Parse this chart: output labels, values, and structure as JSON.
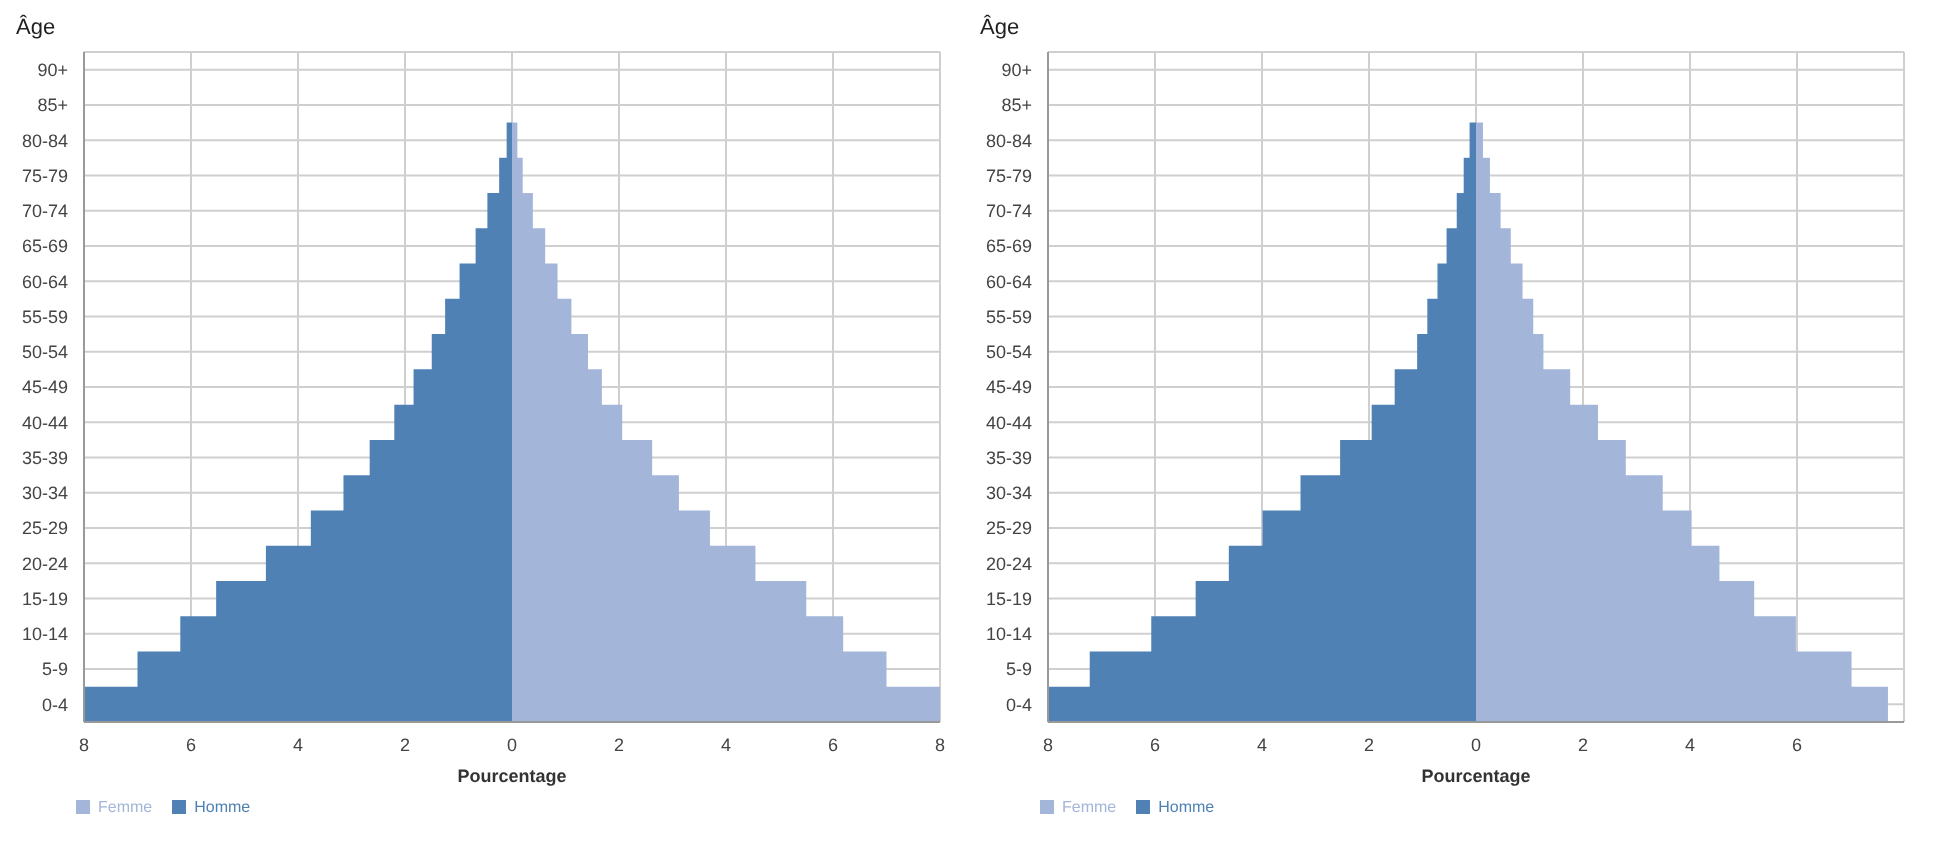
{
  "chart_data": [
    {
      "type": "bar",
      "orientation": "horizontal",
      "stacked": true,
      "ylabel": "Âge",
      "xlabel": "Pourcentage",
      "categories": [
        "90+",
        "85+",
        "80-84",
        "75-79",
        "70-74",
        "65-69",
        "60-64",
        "55-59",
        "50-54",
        "45-49",
        "40-44",
        "35-39",
        "30-34",
        "25-29",
        "20-24",
        "15-19",
        "10-14",
        "5-9",
        "0-4"
      ],
      "series": [
        {
          "name": "Femme",
          "color": "#a3b5d8",
          "values": [
            0,
            0,
            0.1,
            0.2,
            0.39,
            0.62,
            0.85,
            1.11,
            1.42,
            1.68,
            2.06,
            2.62,
            3.12,
            3.7,
            4.55,
            5.5,
            6.19,
            7.0,
            8.0
          ]
        },
        {
          "name": "Homme",
          "color": "#4f81b5",
          "values": [
            0,
            0,
            -0.1,
            -0.24,
            -0.46,
            -0.68,
            -0.98,
            -1.25,
            -1.5,
            -1.84,
            -2.2,
            -2.66,
            -3.15,
            -3.76,
            -4.6,
            -5.53,
            -6.2,
            -7.0,
            -8.0
          ]
        }
      ],
      "xlim": [
        -8,
        8
      ],
      "xticks": [
        {
          "value": -8,
          "label": "8"
        },
        {
          "value": -6,
          "label": "6"
        },
        {
          "value": -4,
          "label": "4"
        },
        {
          "value": -2,
          "label": "2"
        },
        0,
        2,
        4,
        6,
        8
      ],
      "grid": true,
      "legend": "bottom left"
    },
    {
      "type": "bar",
      "orientation": "horizontal",
      "stacked": true,
      "ylabel": "Âge",
      "xlabel": "Pourcentage",
      "categories": [
        "90+",
        "85+",
        "80-84",
        "75-79",
        "70-74",
        "65-69",
        "60-64",
        "55-59",
        "50-54",
        "45-49",
        "40-44",
        "35-39",
        "30-34",
        "25-29",
        "20-24",
        "15-19",
        "10-14",
        "5-9",
        "0-4"
      ],
      "series": [
        {
          "name": "Femme",
          "color": "#a3b5d8",
          "values": [
            0,
            0,
            0.13,
            0.26,
            0.46,
            0.65,
            0.87,
            1.07,
            1.26,
            1.76,
            2.28,
            2.8,
            3.49,
            4.03,
            4.55,
            5.2,
            5.98,
            7.02,
            7.7
          ]
        },
        {
          "name": "Homme",
          "color": "#4f81b5",
          "values": [
            0,
            0,
            -0.12,
            -0.23,
            -0.36,
            -0.55,
            -0.72,
            -0.91,
            -1.1,
            -1.52,
            -1.95,
            -2.54,
            -3.28,
            -3.99,
            -4.62,
            -5.24,
            -6.07,
            -7.22,
            -8.0
          ]
        }
      ],
      "xlim": [
        -8,
        8
      ],
      "xticks": [
        {
          "value": -8,
          "label": "8"
        },
        {
          "value": -6,
          "label": "6"
        },
        {
          "value": -4,
          "label": "4"
        },
        {
          "value": -2,
          "label": "2"
        },
        0,
        2,
        4,
        6,
        {
          "value": 8,
          "label": null
        }
      ],
      "grid": true,
      "legend": "bottom left"
    }
  ]
}
